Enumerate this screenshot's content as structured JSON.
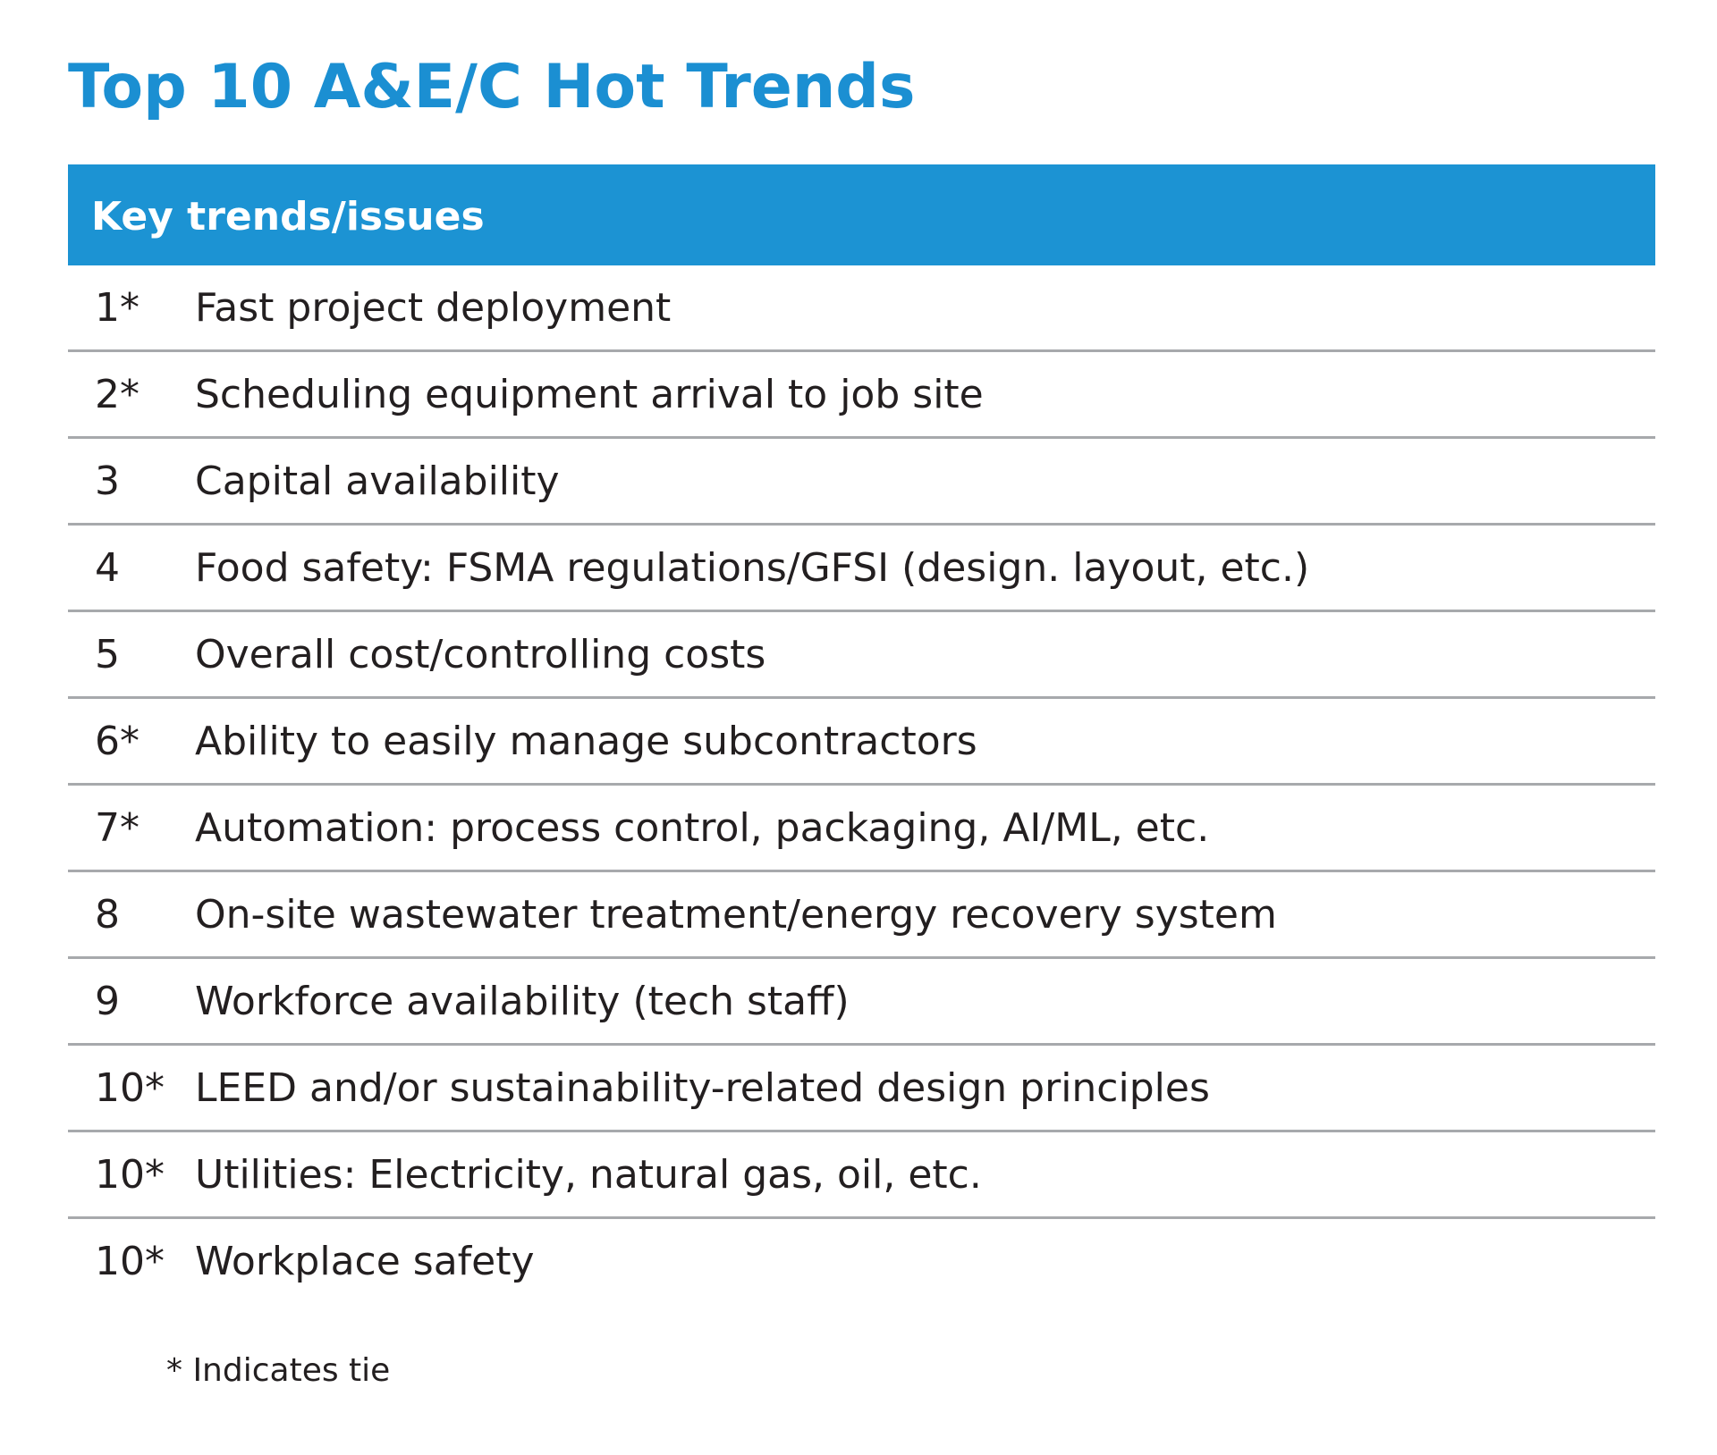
{
  "title": "Top 10 A&E/C Hot Trends",
  "table": {
    "header": "Key trends/issues",
    "rows": [
      {
        "rank": "1*",
        "issue": "Fast project deployment"
      },
      {
        "rank": "2*",
        "issue": "Scheduling equipment arrival to job site"
      },
      {
        "rank": "3",
        "issue": "Capital availability"
      },
      {
        "rank": "4",
        "issue": "Food safety: FSMA regulations/GFSI (design. layout, etc.)"
      },
      {
        "rank": "5",
        "issue": "Overall cost/controlling costs"
      },
      {
        "rank": "6*",
        "issue": "Ability to easily manage subcontractors"
      },
      {
        "rank": "7*",
        "issue": "Automation: process control, packaging, AI/ML, etc."
      },
      {
        "rank": "8",
        "issue": "On-site wastewater treatment/energy recovery system"
      },
      {
        "rank": "9",
        "issue": "Workforce availability (tech staff)"
      },
      {
        "rank": "10*",
        "issue": "LEED and/or sustainability-related design principles"
      },
      {
        "rank": "10*",
        "issue": "Utilities: Electricity, natural gas, oil, etc."
      },
      {
        "rank": "10*",
        "issue": "Workplace safety"
      }
    ]
  },
  "footnote": "* Indicates tie",
  "colors": {
    "title": "#1b8fd2",
    "header_bg": "#1c93d3",
    "divider": "#a7a9ac",
    "text": "#231f20"
  }
}
